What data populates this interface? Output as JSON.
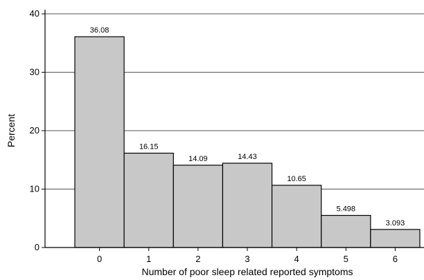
{
  "chart_data": {
    "type": "bar",
    "categories": [
      "0",
      "1",
      "2",
      "3",
      "4",
      "5",
      "6"
    ],
    "values": [
      36.08,
      16.15,
      14.09,
      14.43,
      10.65,
      5.498,
      3.093
    ],
    "value_labels": [
      "36.08",
      "16.15",
      "14.09",
      "14.43",
      "10.65",
      "5.498",
      "3.093"
    ],
    "title": "",
    "xlabel": "Number of poor sleep related reported symptoms",
    "ylabel": "Percent",
    "ylim": [
      0,
      40
    ],
    "yticks": [
      0,
      10,
      20,
      30,
      40
    ],
    "grid": true,
    "colors": {
      "bar_fill": "#c8c8c8",
      "bar_stroke": "#000000",
      "grid": "#555555",
      "axis": "#000000"
    }
  }
}
